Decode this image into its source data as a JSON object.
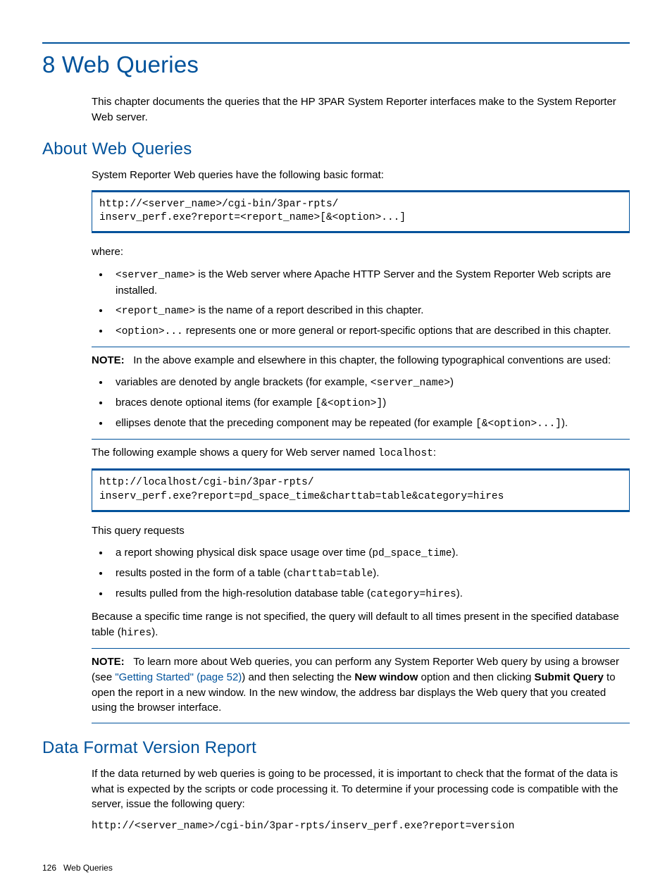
{
  "colors": {
    "accent": "#00529b",
    "text": "#000000",
    "background": "#ffffff"
  },
  "typography": {
    "h1_size_pt": 24,
    "h2_size_pt": 18,
    "body_size_pt": 11,
    "mono_family": "Courier New"
  },
  "chapter": {
    "title": "8 Web Queries",
    "intro": "This chapter documents the queries that the HP 3PAR System Reporter interfaces make to the System Reporter Web server."
  },
  "section1": {
    "heading": "About Web Queries",
    "p1": "System Reporter Web queries have the following basic format:",
    "code1": "http://<server_name>/cgi-bin/3par-rpts/\ninserv_perf.exe?report=<report_name>[&<option>...]",
    "where": "where:",
    "bullets1": {
      "b1_code": "<server_name>",
      "b1_text": " is the Web server where Apache HTTP Server and the System Reporter Web scripts are installed.",
      "b2_code": "<report_name>",
      "b2_text": " is the name of a report described in this chapter.",
      "b3_code": "<option>...",
      "b3_text": " represents one or more general or report-specific options that are described in this chapter."
    },
    "note1": {
      "label": "NOTE:",
      "text": "In the above example and elsewhere in this chapter, the following typographical conventions are used:",
      "b1_a": "variables are denoted by angle brackets (for example, ",
      "b1_code": "<server_name>",
      "b1_b": ")",
      "b2_a": "braces denote optional items (for example ",
      "b2_code": "[&<option>]",
      "b2_b": ")",
      "b3_a": "ellipses denote that the preceding component may be repeated (for example ",
      "b3_code": "[&<option>...]",
      "b3_b": ")."
    },
    "p2_a": "The following example shows a query for Web server named ",
    "p2_code": "localhost",
    "p2_b": ":",
    "code2": "http://localhost/cgi-bin/3par-rpts/\ninserv_perf.exe?report=pd_space_time&charttab=table&category=hires",
    "p3": "This query requests",
    "bullets2": {
      "b1_a": "a report showing physical disk space usage over time (",
      "b1_code": "pd_space_time",
      "b1_b": ").",
      "b2_a": "results posted in the form of a table (",
      "b2_code": "charttab=table",
      "b2_b": ").",
      "b3_a": "results pulled from the high-resolution database table (",
      "b3_code": "category=hires",
      "b3_b": ")."
    },
    "p4_a": "Because a specific time range is not specified, the query will default to all times present in the specified database table (",
    "p4_code": "hires",
    "p4_b": ").",
    "note2": {
      "label": "NOTE:",
      "t1": "To learn more about Web queries, you can perform any System Reporter Web query by using a browser (see ",
      "link": "\"Getting Started\" (page 52)",
      "t2": ") and then selecting the ",
      "bold1": "New window",
      "t3": " option and then clicking ",
      "bold2": "Submit Query",
      "t4": " to open the report in a new window. In the new window, the address bar displays the Web query that you created using the browser interface."
    }
  },
  "section2": {
    "heading": "Data Format Version Report",
    "p1": "If the data returned by web queries is going to be processed, it is important to check that the format of the data is what is expected by the scripts or code processing it. To determine if your processing code is compatible with the server, issue the following query:",
    "code": "http://<server_name>/cgi-bin/3par-rpts/inserv_perf.exe?report=version"
  },
  "footer": {
    "page": "126",
    "label": "Web Queries"
  }
}
